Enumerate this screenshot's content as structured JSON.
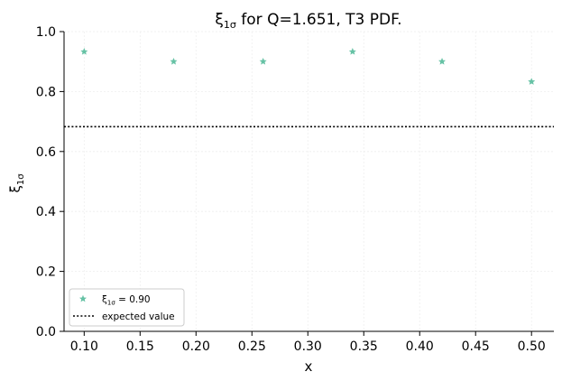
{
  "chart_data": {
    "type": "scatter",
    "title": "ξ1σ for Q=1.651, T3 PDF.",
    "title_parts": {
      "main": "ξ",
      "sub": "1σ",
      "rest": " for Q=1.651, T3 PDF."
    },
    "xlabel": "x",
    "ylabel_parts": {
      "main": "ξ",
      "sub": "1σ"
    },
    "xlim": [
      0.082,
      0.52
    ],
    "ylim": [
      0.0,
      1.0
    ],
    "xticks": [
      0.1,
      0.15,
      0.2,
      0.25,
      0.3,
      0.35,
      0.4,
      0.45,
      0.5
    ],
    "xtick_labels": [
      "0.10",
      "0.15",
      "0.20",
      "0.25",
      "0.30",
      "0.35",
      "0.40",
      "0.45",
      "0.50"
    ],
    "yticks": [
      0.0,
      0.2,
      0.4,
      0.6,
      0.8,
      1.0
    ],
    "ytick_labels": [
      "0.0",
      "0.2",
      "0.4",
      "0.6",
      "0.8",
      "1.0"
    ],
    "grid": true,
    "series": [
      {
        "name": "ξ1σ = 0.90",
        "name_parts": {
          "main": "ξ",
          "sub": "1σ",
          "rest": " = 0.90"
        },
        "marker": "star",
        "color": "#66c2a5",
        "x": [
          0.1,
          0.18,
          0.26,
          0.34,
          0.42,
          0.5
        ],
        "y": [
          0.933,
          0.9,
          0.9,
          0.933,
          0.9,
          0.833
        ]
      }
    ],
    "reference_line": {
      "name": "expected value",
      "y": 0.6827,
      "style": "dotted",
      "color": "#000000"
    },
    "legend_position": "lower-left"
  }
}
